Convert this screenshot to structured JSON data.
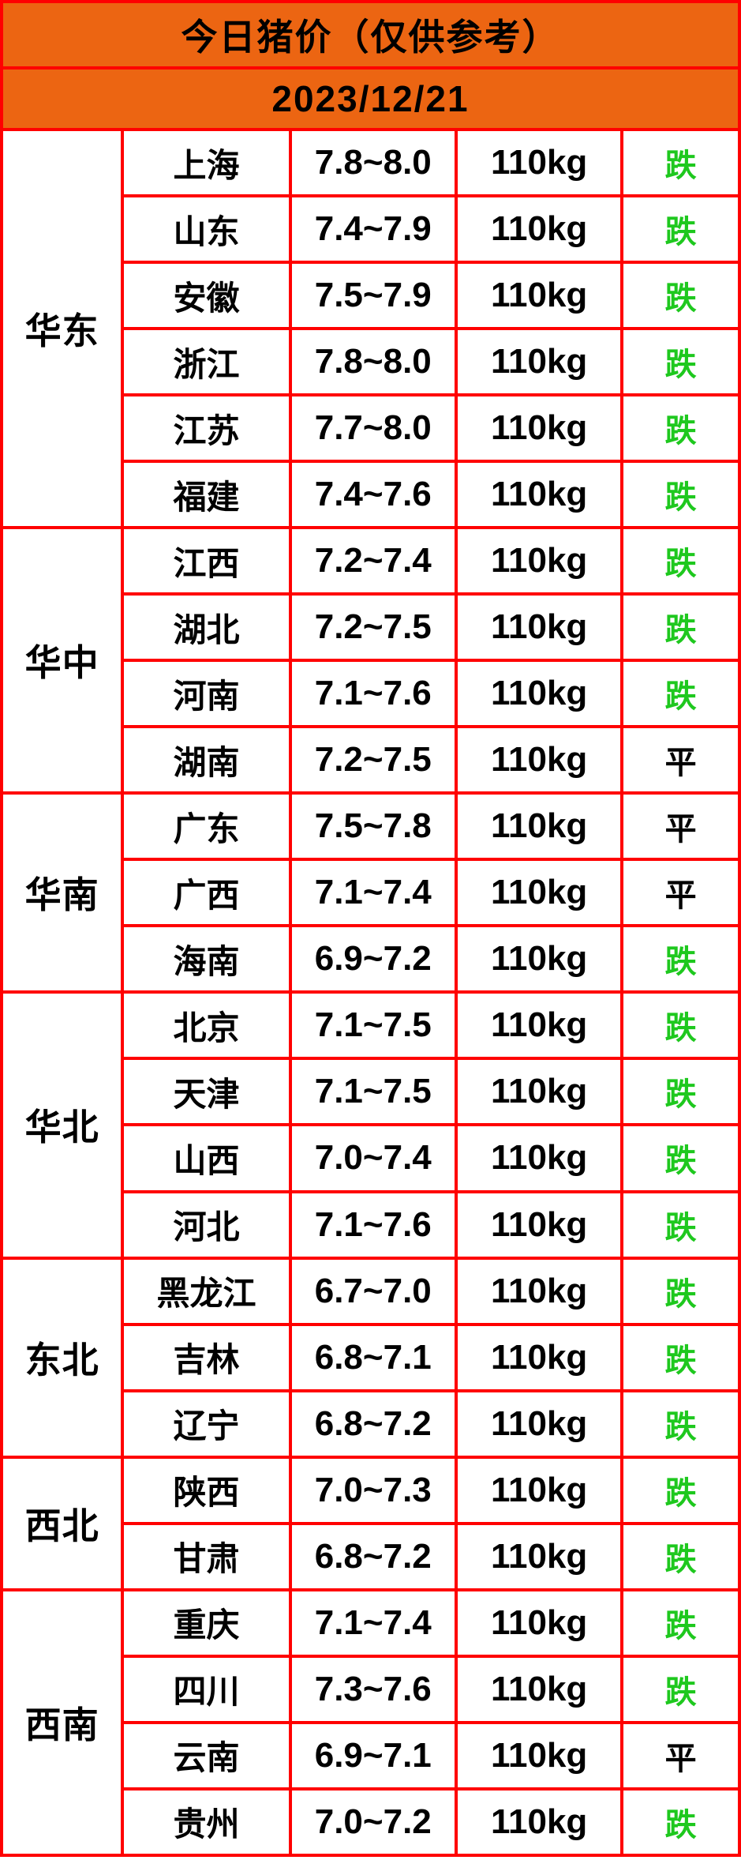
{
  "colors": {
    "header_bg": "#EC6512",
    "border_red": "#FF0000",
    "text_black": "#000000",
    "trend_down_green": "#1EC81E",
    "cell_bg": "#FFFFFF"
  },
  "chart_data": {
    "type": "table",
    "title": "今日猪价（仅供参考）",
    "date": "2023/12/21",
    "columns": [
      "region",
      "province",
      "price_range",
      "weight",
      "trend"
    ],
    "trend_legend": {
      "down": "跌",
      "flat": "平"
    },
    "regions": [
      {
        "name": "华东",
        "rows": [
          {
            "province": "上海",
            "price": "7.8~8.0",
            "weight": "110kg",
            "trend": "跌",
            "trend_type": "down"
          },
          {
            "province": "山东",
            "price": "7.4~7.9",
            "weight": "110kg",
            "trend": "跌",
            "trend_type": "down"
          },
          {
            "province": "安徽",
            "price": "7.5~7.9",
            "weight": "110kg",
            "trend": "跌",
            "trend_type": "down"
          },
          {
            "province": "浙江",
            "price": "7.8~8.0",
            "weight": "110kg",
            "trend": "跌",
            "trend_type": "down"
          },
          {
            "province": "江苏",
            "price": "7.7~8.0",
            "weight": "110kg",
            "trend": "跌",
            "trend_type": "down"
          },
          {
            "province": "福建",
            "price": "7.4~7.6",
            "weight": "110kg",
            "trend": "跌",
            "trend_type": "down"
          }
        ]
      },
      {
        "name": "华中",
        "rows": [
          {
            "province": "江西",
            "price": "7.2~7.4",
            "weight": "110kg",
            "trend": "跌",
            "trend_type": "down"
          },
          {
            "province": "湖北",
            "price": "7.2~7.5",
            "weight": "110kg",
            "trend": "跌",
            "trend_type": "down"
          },
          {
            "province": "河南",
            "price": "7.1~7.6",
            "weight": "110kg",
            "trend": "跌",
            "trend_type": "down"
          },
          {
            "province": "湖南",
            "price": "7.2~7.5",
            "weight": "110kg",
            "trend": "平",
            "trend_type": "flat"
          }
        ]
      },
      {
        "name": "华南",
        "rows": [
          {
            "province": "广东",
            "price": "7.5~7.8",
            "weight": "110kg",
            "trend": "平",
            "trend_type": "flat"
          },
          {
            "province": "广西",
            "price": "7.1~7.4",
            "weight": "110kg",
            "trend": "平",
            "trend_type": "flat"
          },
          {
            "province": "海南",
            "price": "6.9~7.2",
            "weight": "110kg",
            "trend": "跌",
            "trend_type": "down"
          }
        ]
      },
      {
        "name": "华北",
        "rows": [
          {
            "province": "北京",
            "price": "7.1~7.5",
            "weight": "110kg",
            "trend": "跌",
            "trend_type": "down"
          },
          {
            "province": "天津",
            "price": "7.1~7.5",
            "weight": "110kg",
            "trend": "跌",
            "trend_type": "down"
          },
          {
            "province": "山西",
            "price": "7.0~7.4",
            "weight": "110kg",
            "trend": "跌",
            "trend_type": "down"
          },
          {
            "province": "河北",
            "price": "7.1~7.6",
            "weight": "110kg",
            "trend": "跌",
            "trend_type": "down"
          }
        ]
      },
      {
        "name": "东北",
        "rows": [
          {
            "province": "黑龙江",
            "price": "6.7~7.0",
            "weight": "110kg",
            "trend": "跌",
            "trend_type": "down"
          },
          {
            "province": "吉林",
            "price": "6.8~7.1",
            "weight": "110kg",
            "trend": "跌",
            "trend_type": "down"
          },
          {
            "province": "辽宁",
            "price": "6.8~7.2",
            "weight": "110kg",
            "trend": "跌",
            "trend_type": "down"
          }
        ]
      },
      {
        "name": "西北",
        "rows": [
          {
            "province": "陕西",
            "price": "7.0~7.3",
            "weight": "110kg",
            "trend": "跌",
            "trend_type": "down"
          },
          {
            "province": "甘肃",
            "price": "6.8~7.2",
            "weight": "110kg",
            "trend": "跌",
            "trend_type": "down"
          }
        ]
      },
      {
        "name": "西南",
        "rows": [
          {
            "province": "重庆",
            "price": "7.1~7.4",
            "weight": "110kg",
            "trend": "跌",
            "trend_type": "down"
          },
          {
            "province": "四川",
            "price": "7.3~7.6",
            "weight": "110kg",
            "trend": "跌",
            "trend_type": "down"
          },
          {
            "province": "云南",
            "price": "6.9~7.1",
            "weight": "110kg",
            "trend": "平",
            "trend_type": "flat"
          },
          {
            "province": "贵州",
            "price": "7.0~7.2",
            "weight": "110kg",
            "trend": "跌",
            "trend_type": "down"
          }
        ]
      }
    ]
  }
}
